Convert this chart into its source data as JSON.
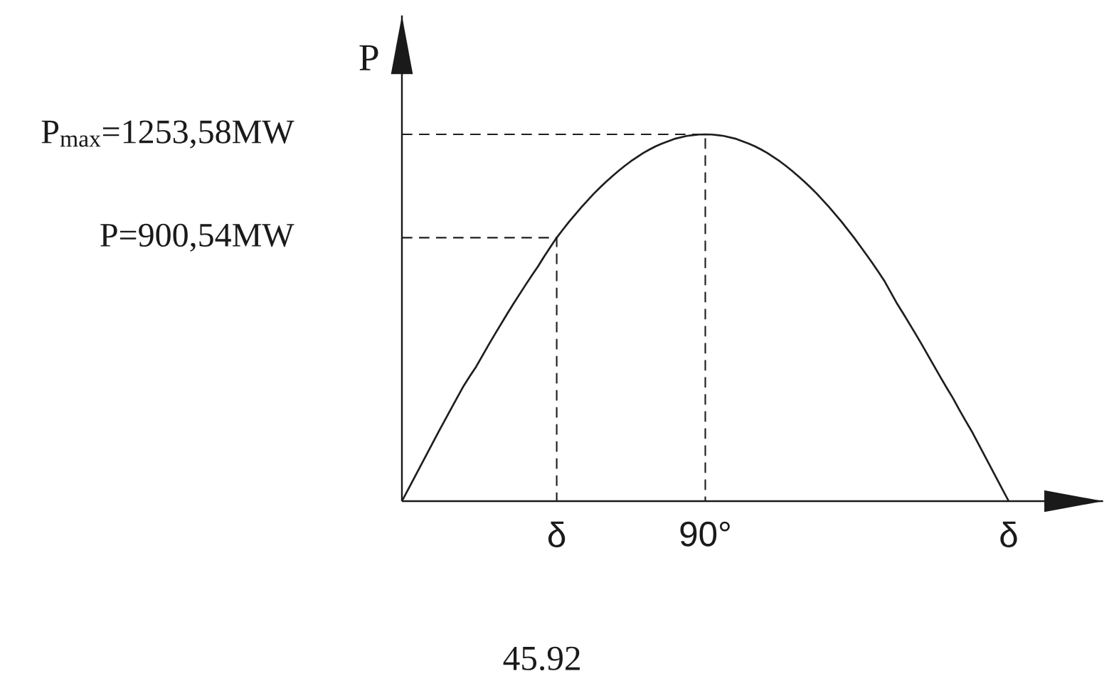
{
  "chart_data": {
    "type": "line",
    "ylabel": "P",
    "categories": [
      null,
      null,
      null,
      null,
      null,
      null,
      null,
      null,
      null,
      null,
      null,
      null,
      null,
      null,
      null,
      null,
      null,
      null,
      null,
      null,
      null,
      null,
      null,
      null,
      null,
      "δ",
      null,
      null,
      null,
      null,
      null,
      null,
      null,
      null,
      null,
      null,
      null,
      null,
      null,
      null,
      null,
      null,
      null,
      null,
      null,
      null,
      null,
      null,
      null,
      "90°",
      null,
      null,
      null,
      null,
      null,
      null,
      null,
      null,
      null,
      null,
      null,
      null,
      null,
      null,
      null,
      null,
      null,
      null,
      null,
      null,
      null,
      null,
      null,
      null,
      null,
      null,
      null,
      null,
      null,
      null,
      null,
      null,
      null,
      null,
      null,
      null,
      null,
      null,
      null,
      null,
      null,
      null,
      null,
      null,
      null,
      null,
      null,
      null,
      "δ"
    ],
    "series": [
      {
        "color": "#1e1e1e",
        "values": [
          0,
          40,
          80,
          120,
          160,
          200,
          240,
          279,
          318,
          357,
          395,
          428,
          460,
          497,
          534,
          570,
          605,
          640,
          674,
          707,
          740,
          772,
          803,
          837,
          869,
          900.54,
          928,
          955,
          980,
          1005,
          1028,
          1051,
          1072,
          1092,
          1111,
          1129,
          1146,
          1162,
          1176,
          1190,
          1202,
          1213,
          1222,
          1230,
          1238,
          1243,
          1248,
          1251,
          1253,
          1253.58,
          1253,
          1251,
          1248,
          1243,
          1238,
          1230,
          1222,
          1213,
          1202,
          1190,
          1176,
          1162,
          1146,
          1129,
          1111,
          1092,
          1072,
          1051,
          1028,
          1005,
          980,
          955,
          928,
          901,
          872,
          843,
          813,
          782,
          750,
          712,
          674,
          640,
          605,
          570,
          534,
          497,
          460,
          423,
          387,
          352,
          313,
          276,
          240,
          200,
          160,
          120,
          80,
          40,
          0
        ]
      },
      {
        "type": "step",
        "color": "#1e1e1e",
        "line_style": "dashed",
        "values": [
          900.54,
          900.54,
          900.54,
          900.54,
          900.54,
          900.54,
          900.54,
          900.54,
          900.54,
          900.54,
          900.54,
          900.54,
          900.54,
          900.54,
          900.54,
          900.54,
          900.54,
          900.54,
          900.54,
          900.54,
          900.54,
          900.54,
          900.54,
          900.54,
          900.54,
          0,
          null,
          null,
          null,
          null,
          null,
          null,
          null,
          null,
          null,
          null,
          null,
          null,
          null,
          null,
          null,
          null,
          null,
          null,
          null,
          null,
          null,
          null,
          null,
          null,
          null,
          null,
          null,
          null,
          null,
          null,
          null,
          null,
          null,
          null,
          null,
          null,
          null,
          null,
          null,
          null,
          null,
          null,
          null,
          null,
          null,
          null,
          null,
          null,
          null,
          null,
          null,
          null,
          null,
          null,
          null,
          null,
          null,
          null,
          null,
          null,
          null,
          null,
          null,
          null,
          null,
          null,
          null,
          null,
          null,
          null,
          null,
          null,
          null
        ]
      },
      {
        "type": "step",
        "color": "#1e1e1e",
        "line_style": "dashed",
        "values": [
          1253.58,
          1253.58,
          1253.58,
          1253.58,
          1253.58,
          1253.58,
          1253.58,
          1253.58,
          1253.58,
          1253.58,
          1253.58,
          1253.58,
          1253.58,
          1253.58,
          1253.58,
          1253.58,
          1253.58,
          1253.58,
          1253.58,
          1253.58,
          1253.58,
          1253.58,
          1253.58,
          1253.58,
          1253.58,
          1253.58,
          1253.58,
          1253.58,
          1253.58,
          1253.58,
          1253.58,
          1253.58,
          1253.58,
          1253.58,
          1253.58,
          1253.58,
          1253.58,
          1253.58,
          1253.58,
          1253.58,
          1253.58,
          1253.58,
          1253.58,
          1253.58,
          1253.58,
          1253.58,
          1253.58,
          1253.58,
          1253.58,
          0,
          null,
          null,
          null,
          null,
          null,
          null,
          null,
          null,
          null,
          null,
          null,
          null,
          null,
          null,
          null,
          null,
          null,
          null,
          null,
          null,
          null,
          null,
          null,
          null,
          null,
          null,
          null,
          null,
          null,
          null,
          null,
          null,
          null,
          null,
          null,
          null,
          null,
          null,
          null,
          null,
          null,
          null,
          null,
          null,
          null,
          null,
          null,
          null,
          null
        ]
      }
    ],
    "ylim": [
      0,
      1660
    ],
    "yticks": [
      {
        "value": 900.54,
        "label": "P=900,54MW"
      },
      {
        "value": 1253.58,
        "label": "P$_{max}$=1253,58MW"
      }
    ],
    "annotations": [
      "45.92"
    ],
    "line_style": "solid",
    "marker": "none"
  }
}
